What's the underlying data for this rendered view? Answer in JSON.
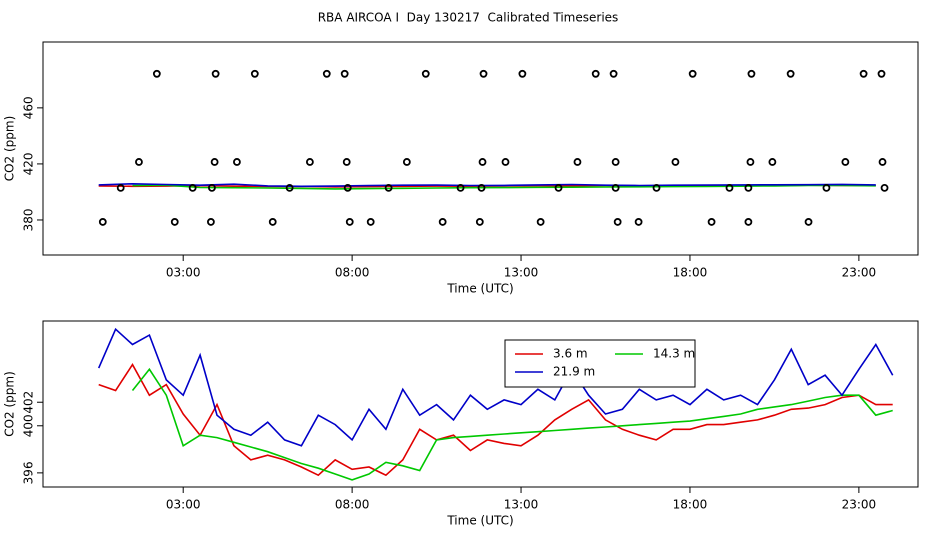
{
  "title": "RBA AIRCOA I  Day 130217  Calibrated Timeseries",
  "chart_data": [
    {
      "type": "line",
      "xlabel": "Time (UTC)",
      "ylabel": "CO2 (ppm)",
      "xlim": [
        -1.15,
        24.75
      ],
      "xticks": [
        {
          "value": 3,
          "label": "03:00"
        },
        {
          "value": 8,
          "label": "08:00"
        },
        {
          "value": 13,
          "label": "13:00"
        },
        {
          "value": 18,
          "label": "18:00"
        },
        {
          "value": 23,
          "label": "23:00"
        }
      ],
      "ylim": [
        355,
        507
      ],
      "yticks": [
        380,
        420,
        460
      ],
      "x": [
        0.5,
        1.5,
        2.5,
        3.5,
        4.5,
        5.5,
        6.5,
        7.5,
        8.5,
        9.5,
        10.5,
        11.5,
        12.5,
        13.5,
        14.5,
        15.5,
        16.5,
        17.5,
        18.5,
        19.5,
        20.5,
        21.5,
        22.5,
        23.5
      ],
      "series": [
        {
          "color": "#e00000",
          "values": [
            404.3,
            404.0,
            404.2,
            404.5,
            404.1,
            403.9,
            404.0,
            403.6,
            403.8,
            404.0,
            404.2,
            404.1,
            404.3,
            404.5,
            404.4,
            404.6,
            404.3,
            404.5,
            404.4,
            404.6,
            404.5,
            404.8,
            404.7,
            404.6
          ]
        },
        {
          "color": "#00c800",
          "values": [
            null,
            404.5,
            404.8,
            403.2,
            403.0,
            402.8,
            402.5,
            402.2,
            402.4,
            402.6,
            402.8,
            403.0,
            403.1,
            403.3,
            403.4,
            403.5,
            403.7,
            403.8,
            403.9,
            404.1,
            404.3,
            404.6,
            404.7,
            404.4
          ]
        },
        {
          "color": "#0000c8",
          "values": [
            405.0,
            405.8,
            405.3,
            404.8,
            405.5,
            404.3,
            404.0,
            404.2,
            404.5,
            404.8,
            404.9,
            404.6,
            404.7,
            405.0,
            405.3,
            404.8,
            404.6,
            404.8,
            404.9,
            405.0,
            405.1,
            405.2,
            405.4,
            405.0
          ]
        }
      ],
      "points": {
        "color": "#000000",
        "x": [
          2.22,
          3.96,
          5.12,
          7.25,
          7.78,
          10.18,
          11.89,
          13.04,
          15.21,
          15.74,
          18.08,
          19.82,
          20.98,
          23.14,
          23.67,
          1.69,
          3.93,
          4.59,
          6.75,
          7.84,
          9.62,
          11.86,
          12.54,
          14.67,
          15.8,
          17.57,
          19.79,
          20.44,
          22.6,
          23.7,
          1.15,
          3.28,
          3.85,
          6.15,
          7.87,
          9.08,
          11.21,
          11.83,
          14.11,
          15.8,
          17.01,
          19.17,
          19.73,
          22.04,
          23.76,
          0.62,
          2.75,
          3.82,
          5.65,
          7.93,
          8.55,
          10.68,
          11.78,
          13.58,
          15.86,
          16.48,
          18.64,
          19.73,
          21.51
        ],
        "y": [
          484.3,
          484.3,
          484.3,
          484.3,
          484.3,
          484.3,
          484.3,
          484.3,
          484.3,
          484.3,
          484.3,
          484.3,
          484.3,
          484.3,
          484.3,
          421.4,
          421.4,
          421.4,
          421.4,
          421.4,
          421.4,
          421.4,
          421.4,
          421.4,
          421.4,
          421.4,
          421.4,
          421.4,
          421.4,
          421.4,
          402.9,
          402.9,
          402.9,
          402.9,
          402.9,
          402.9,
          402.9,
          402.9,
          402.9,
          402.9,
          402.9,
          402.9,
          402.9,
          402.9,
          402.9,
          378.6,
          378.6,
          378.6,
          378.6,
          378.6,
          378.6,
          378.6,
          378.6,
          378.6,
          378.6,
          378.6,
          378.6,
          378.6,
          378.6
        ]
      }
    },
    {
      "type": "line",
      "xlabel": "Time (UTC)",
      "ylabel": "CO2 (ppm)",
      "xlim": [
        -1.15,
        24.75
      ],
      "xticks": [
        {
          "value": 3,
          "label": "03:00"
        },
        {
          "value": 8,
          "label": "08:00"
        },
        {
          "value": 13,
          "label": "13:00"
        },
        {
          "value": 18,
          "label": "18:00"
        },
        {
          "value": 23,
          "label": "23:00"
        }
      ],
      "ylim": [
        394.8,
        408.9
      ],
      "yticks": [
        396,
        400,
        402
      ],
      "x": [
        0.5,
        1,
        1.5,
        2,
        2.5,
        3,
        3.5,
        4,
        4.5,
        5,
        5.5,
        6,
        6.5,
        7,
        7.5,
        8,
        8.5,
        9,
        9.5,
        10,
        10.5,
        11,
        11.5,
        12,
        12.5,
        13,
        13.5,
        14,
        14.5,
        15,
        15.5,
        16,
        16.5,
        17,
        17.5,
        18,
        18.5,
        19,
        19.5,
        20,
        20.5,
        21,
        21.5,
        22,
        22.5,
        23,
        23.5,
        24
      ],
      "series": [
        {
          "name": "3.6 m",
          "color": "#e00000",
          "values": [
            403.5,
            403.0,
            405.2,
            402.6,
            403.5,
            401.0,
            399.2,
            401.8,
            398.3,
            397.1,
            397.5,
            397.1,
            396.5,
            395.8,
            397.1,
            396.3,
            396.5,
            395.8,
            397.1,
            399.7,
            398.8,
            399.2,
            397.9,
            398.8,
            398.5,
            398.3,
            399.2,
            400.5,
            401.4,
            402.2,
            400.5,
            399.7,
            399.2,
            398.8,
            399.7,
            399.7,
            400.1,
            400.1,
            400.3,
            400.5,
            400.9,
            401.4,
            401.5,
            401.8,
            402.4,
            402.6,
            401.8,
            401.8
          ]
        },
        {
          "name": "14.3 m",
          "color": "#00c800",
          "values": [
            null,
            null,
            403.0,
            404.8,
            402.6,
            398.3,
            399.2,
            399.0,
            398.6,
            398.2,
            397.8,
            397.3,
            396.8,
            396.4,
            395.9,
            395.4,
            395.9,
            396.9,
            396.6,
            396.2,
            398.8,
            399.0,
            399.1,
            399.2,
            399.3,
            399.4,
            399.5,
            399.6,
            399.7,
            399.8,
            399.9,
            400.0,
            400.1,
            400.2,
            400.3,
            400.4,
            400.6,
            400.8,
            401.0,
            401.4,
            401.6,
            401.8,
            402.1,
            402.4,
            402.6,
            402.6,
            400.9,
            401.3
          ]
        },
        {
          "name": "21.9 m",
          "color": "#0000c8",
          "values": [
            404.9,
            408.2,
            406.9,
            407.7,
            403.9,
            402.6,
            406.0,
            400.9,
            399.7,
            399.2,
            400.3,
            398.8,
            398.3,
            400.9,
            400.1,
            398.8,
            401.4,
            399.7,
            403.1,
            400.9,
            401.8,
            400.5,
            402.6,
            401.4,
            402.2,
            401.8,
            403.1,
            402.2,
            404.8,
            402.6,
            401.0,
            401.4,
            403.1,
            402.2,
            402.6,
            401.8,
            403.1,
            402.2,
            402.6,
            401.8,
            403.9,
            406.5,
            403.5,
            404.3,
            402.6,
            404.8,
            406.9,
            404.3
          ]
        }
      ]
    }
  ]
}
